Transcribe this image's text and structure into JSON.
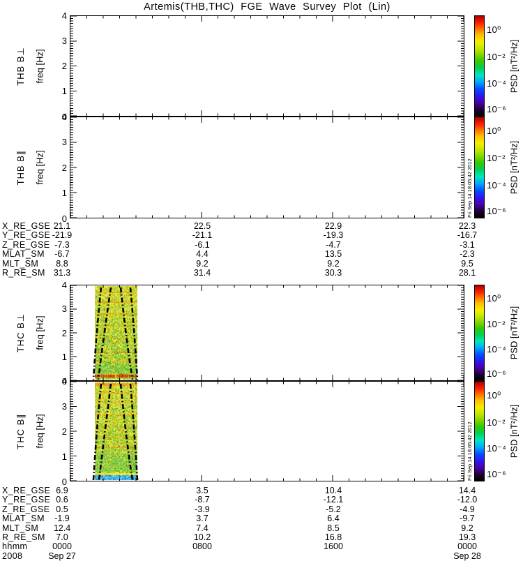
{
  "title": "Artemis(THB,THC) FGE Wave Survey Plot (Lin)",
  "colorbar": {
    "label": "PSD [nT²/Hz]",
    "ticks": [
      "10⁰",
      "10⁻²",
      "10⁻⁴",
      "10⁻⁶"
    ],
    "timestamp": "Fri Sep 14 18:05:42 2012"
  },
  "panels": [
    {
      "id": "thb-bperp",
      "label": "THB B⊥",
      "ylabel": "freq [Hz]",
      "yticks": [
        "4",
        "3",
        "2",
        "1",
        "0"
      ],
      "has_data": false,
      "show_timestamp": false
    },
    {
      "id": "thb-bpar",
      "label": "THB B∥",
      "ylabel": "freq [Hz]",
      "yticks": [
        "4",
        "3",
        "2",
        "1",
        "0"
      ],
      "has_data": false,
      "show_timestamp": true
    },
    {
      "id": "thc-bperp",
      "label": "THC B⊥",
      "ylabel": "freq [Hz]",
      "yticks": [
        "4",
        "3",
        "2",
        "1",
        "0"
      ],
      "has_data": true,
      "spec": "thc_bperp",
      "show_timestamp": false
    },
    {
      "id": "thc-bpar",
      "label": "THC B∥",
      "ylabel": "freq [Hz]",
      "yticks": [
        "4",
        "3",
        "2",
        "1",
        "0"
      ],
      "has_data": true,
      "spec": "thc_bpar",
      "show_timestamp": true
    }
  ],
  "ephemeris_thb": {
    "rows": [
      {
        "label": "X_RE_GSE",
        "values": [
          "21.1",
          "22.5",
          "22.9",
          "22.3"
        ]
      },
      {
        "label": "Y_RE_GSE",
        "values": [
          "-21.9",
          "-21.1",
          "-19.3",
          "-16.7"
        ]
      },
      {
        "label": "Z_RE_GSE",
        "values": [
          "-7.3",
          "-6.1",
          "-4.7",
          "-3.1"
        ]
      },
      {
        "label": "MLAT_SM",
        "values": [
          "-6.7",
          "4.4",
          "13.5",
          "-2.3"
        ]
      },
      {
        "label": "MLT_SM",
        "values": [
          "8.8",
          "9.2",
          "9.2",
          "9.5"
        ]
      },
      {
        "label": "R_RE_SM",
        "values": [
          "31.3",
          "31.4",
          "30.3",
          "28.1"
        ]
      }
    ]
  },
  "ephemeris_thc": {
    "rows": [
      {
        "label": "X_RE_GSE",
        "values": [
          "6.9",
          "3.5",
          "10.4",
          "14.4"
        ]
      },
      {
        "label": "Y_RE_GSE",
        "values": [
          "0.6",
          "-8.7",
          "-12.1",
          "-12.0"
        ]
      },
      {
        "label": "Z_RE_GSE",
        "values": [
          "0.5",
          "-3.9",
          "-5.2",
          "-4.9"
        ]
      },
      {
        "label": "MLAT_SM",
        "values": [
          "-1.9",
          "3.7",
          "6.4",
          "-9.7"
        ]
      },
      {
        "label": "MLT_SM",
        "values": [
          "12.4",
          "7.4",
          "8.5",
          "9.2"
        ]
      },
      {
        "label": "R_RE_SM",
        "values": [
          "7.0",
          "10.2",
          "16.8",
          "19.3"
        ]
      }
    ],
    "hhmm": {
      "label": "hhmm",
      "values": [
        "0000",
        "0800",
        "1600",
        "0000"
      ]
    },
    "year": "2008",
    "dates": {
      "left": "Sep 27",
      "right": "Sep 28"
    }
  },
  "spectrogram": {
    "palette": {
      "yellow": [
        "#efe22a",
        "#f3e83e",
        "#e6d51e",
        "#f8ee55",
        "#e2de30"
      ],
      "green": [
        "#55c832",
        "#3cb44b",
        "#7ed321",
        "#2f9e2f",
        "#8fd65a"
      ],
      "orange": [
        "#ffa500",
        "#ff8c00",
        "#e87820"
      ],
      "cyan": [
        "#2fd6b0",
        "#35c8e0"
      ],
      "blue_band": [
        "#55bbee",
        "#2288ee",
        "#33ddd5",
        "#88d8f0",
        "#1155dd",
        "#66e0cc"
      ]
    },
    "thc_bperp": {
      "streaks": [
        {
          "f": 0.06,
          "c": "#ff8800",
          "a": 0.45
        },
        {
          "f": 0.165,
          "c": "#ff8800",
          "a": 0.5
        },
        {
          "f": 0.29,
          "c": "#ff8800",
          "a": 0.45
        },
        {
          "f": 0.42,
          "c": "#ff9800",
          "a": 0.35
        },
        {
          "f": 0.55,
          "c": "#ff8800",
          "a": 0.35
        },
        {
          "f": 0.7,
          "c": "#d84b00",
          "a": 0.45
        },
        {
          "f": 0.8,
          "c": "#ff8800",
          "a": 0.35
        },
        {
          "f": 0.945,
          "c": "#ff4400",
          "c2": "#cc1100",
          "a": 0.92,
          "th": 4
        }
      ],
      "green_band": [
        0.84,
        0.925
      ],
      "blue_bottom": false,
      "curves": [
        "M44,3 Q37,70 33,135",
        "M58,3 Q46,85 40,135",
        "M72,3 Q81,85 89,135",
        "M86,3 Q92,70 96,135"
      ]
    },
    "thc_bpar": {
      "streaks": [
        {
          "f": 0.005,
          "c": "#ff8000",
          "a": 0.6,
          "th": 4
        },
        {
          "f": 0.1,
          "c": "#ff8800",
          "a": 0.4
        },
        {
          "f": 0.2,
          "c": "#ff8800",
          "a": 0.4
        },
        {
          "f": 0.33,
          "c": "#ff8800",
          "a": 0.45
        },
        {
          "f": 0.45,
          "c": "#ff8800",
          "a": 0.35
        },
        {
          "f": 0.56,
          "c": "#ff8800",
          "a": 0.4
        },
        {
          "f": 0.66,
          "c": "#e86a00",
          "a": 0.45
        },
        {
          "f": 0.925,
          "c": "#f3eb3a",
          "a": 0.95,
          "th": 3
        }
      ],
      "green_band": [
        0.72,
        0.91
      ],
      "blue_bottom": true,
      "curves": [
        "M44,3 Q37,74 33,141",
        "M58,3 Q47,92 41,141",
        "M72,3 Q81,92 89,141",
        "M86,3 Q92,74 96,141"
      ]
    }
  },
  "chart_data": [
    {
      "type": "heatmap",
      "panel": "THB B⊥",
      "ylabel": "freq [Hz]",
      "ylim": [
        0,
        4
      ],
      "x_major_ticks_hhmm": [
        "0000",
        "0800",
        "1600",
        "0000"
      ],
      "x_range": [
        "2008 Sep 27 0000 UT",
        "2008 Sep 28 0000 UT"
      ],
      "colorbar_label": "PSD [nT²/Hz]",
      "colorbar_scale": "log",
      "colorbar_ticks": [
        "10⁰",
        "10⁻²",
        "10⁻⁴",
        "10⁻⁶"
      ],
      "data_summary": "empty panel — no spectrogram data plotted"
    },
    {
      "type": "heatmap",
      "panel": "THB B∥",
      "ylabel": "freq [Hz]",
      "ylim": [
        0,
        4
      ],
      "x_major_ticks_hhmm": [
        "0000",
        "0800",
        "1600",
        "0000"
      ],
      "x_range": [
        "2008 Sep 27 0000 UT",
        "2008 Sep 28 0000 UT"
      ],
      "colorbar_label": "PSD [nT²/Hz]",
      "colorbar_scale": "log",
      "colorbar_ticks": [
        "10⁰",
        "10⁻²",
        "10⁻⁴",
        "10⁻⁶"
      ],
      "data_summary": "empty panel — no spectrogram data plotted"
    },
    {
      "type": "heatmap",
      "panel": "THC B⊥",
      "ylabel": "freq [Hz]",
      "ylim": [
        0,
        4
      ],
      "x_major_ticks_hhmm": [
        "0000",
        "0800",
        "1600",
        "0000"
      ],
      "x_range": [
        "2008 Sep 27 0000 UT",
        "2008 Sep 28 0000 UT"
      ],
      "colorbar_label": "PSD [nT²/Hz]",
      "colorbar_scale": "log",
      "colorbar_ticks": [
        "10⁰",
        "10⁻²",
        "10⁻⁴",
        "10⁻⁶"
      ],
      "data_summary": "broadband wave burst ≈0130–0400 UT spanning 0–4 Hz; PSD mostly ≈10⁻¹–10⁰ nT²/Hz (yellow) with orange horizontal bands; strongest red enhancement (≈10⁰) near 0.2–0.4 Hz around 0200–0330 UT; greener low PSD below 0.5 Hz; black dash-dot frequency overlay curves form a funnel through the burst"
    },
    {
      "type": "heatmap",
      "panel": "THC B∥",
      "ylabel": "freq [Hz]",
      "ylim": [
        0,
        4
      ],
      "x_major_ticks_hhmm": [
        "0000",
        "0800",
        "1600",
        "0000"
      ],
      "x_range": [
        "2008 Sep 27 0000 UT",
        "2008 Sep 28 0000 UT"
      ],
      "colorbar_label": "PSD [nT²/Hz]",
      "colorbar_scale": "log",
      "colorbar_ticks": [
        "10⁰",
        "10⁻²",
        "10⁻⁴",
        "10⁻⁶"
      ],
      "data_summary": "same burst ≈0130–0400 UT; yellow/orange through 0.5–4 Hz with orange band at top edge, bright yellow line near 0.3 Hz, cyan/blue band below 0.2 Hz; black dash-dot overlay curves"
    }
  ]
}
